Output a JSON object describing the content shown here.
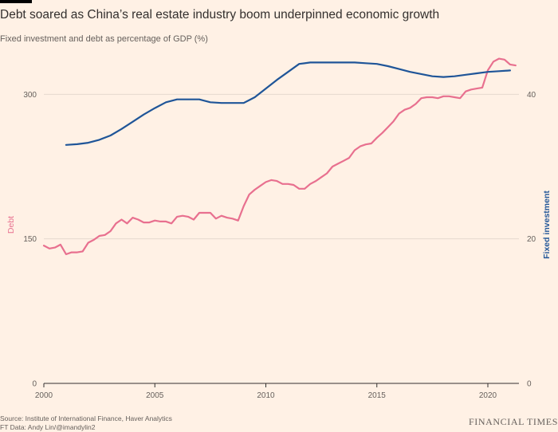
{
  "header": {
    "title": "Debt soared as China’s real estate industry boom underpinned economic growth",
    "subtitle": "Fixed investment and debt as percentage of GDP (%)"
  },
  "footer": {
    "source": "Source: Institute of International Finance, Haver Analytics",
    "credit": "FT Data: Andy Lin/@imandylin2",
    "brand": "FINANCIAL TIMES"
  },
  "colors": {
    "background": "#fff1e5",
    "debt": "#e8708f",
    "fixed_investment": "#1f5598",
    "axis": "#33302e",
    "grid": "#e6d9ce"
  },
  "chart_data": {
    "type": "line",
    "x_range": [
      2000,
      2021.4
    ],
    "x_ticks": [
      2000,
      2005,
      2010,
      2015,
      2020
    ],
    "grid": true,
    "y_left": {
      "label": "Debt",
      "range": [
        0,
        340
      ],
      "ticks": [
        0,
        150,
        300
      ],
      "color": "#e8708f"
    },
    "y_right": {
      "label": "Fixed investment",
      "range": [
        0,
        45.33
      ],
      "ticks": [
        0,
        20,
        40
      ],
      "color": "#1f5598"
    },
    "series": [
      {
        "name": "Debt",
        "axis": "left",
        "x": [
          2000.0,
          2000.25,
          2000.5,
          2000.75,
          2001.0,
          2001.25,
          2001.5,
          2001.75,
          2002.0,
          2002.25,
          2002.5,
          2002.75,
          2003.0,
          2003.25,
          2003.5,
          2003.75,
          2004.0,
          2004.25,
          2004.5,
          2004.75,
          2005.0,
          2005.25,
          2005.5,
          2005.75,
          2006.0,
          2006.25,
          2006.5,
          2006.75,
          2007.0,
          2007.25,
          2007.5,
          2007.75,
          2008.0,
          2008.25,
          2008.5,
          2008.75,
          2009.0,
          2009.25,
          2009.5,
          2009.75,
          2010.0,
          2010.25,
          2010.5,
          2010.75,
          2011.0,
          2011.25,
          2011.5,
          2011.75,
          2012.0,
          2012.25,
          2012.5,
          2012.75,
          2013.0,
          2013.25,
          2013.5,
          2013.75,
          2014.0,
          2014.25,
          2014.5,
          2014.75,
          2015.0,
          2015.25,
          2015.5,
          2015.75,
          2016.0,
          2016.25,
          2016.5,
          2016.75,
          2017.0,
          2017.25,
          2017.5,
          2017.75,
          2018.0,
          2018.25,
          2018.5,
          2018.75,
          2019.0,
          2019.25,
          2019.5,
          2019.75,
          2020.0,
          2020.25,
          2020.5,
          2020.75,
          2021.0,
          2021.25
        ],
        "values": [
          143,
          140,
          141,
          144,
          134,
          136,
          136,
          137,
          146,
          149,
          153,
          154,
          158,
          166,
          170,
          166,
          172,
          170,
          167,
          167,
          169,
          168,
          168,
          166,
          173,
          174,
          173,
          170,
          177,
          177,
          177,
          171,
          174,
          172,
          171,
          169,
          184,
          196,
          201,
          205,
          209,
          211,
          210,
          207,
          207,
          206,
          202,
          202,
          207,
          210,
          214,
          218,
          225,
          228,
          231,
          234,
          242,
          246,
          248,
          249,
          255,
          260,
          266,
          272,
          280,
          284,
          286,
          290,
          296,
          297,
          297,
          296,
          298,
          298,
          297,
          296,
          303,
          305,
          306,
          307,
          325,
          334,
          337,
          336,
          331,
          330
        ]
      },
      {
        "name": "Fixed investment",
        "axis": "right",
        "x": [
          2001.0,
          2001.5,
          2002.0,
          2002.5,
          2003.0,
          2003.5,
          2004.0,
          2004.5,
          2005.0,
          2005.5,
          2006.0,
          2006.5,
          2007.0,
          2007.5,
          2008.0,
          2008.5,
          2009.0,
          2009.5,
          2010.0,
          2010.5,
          2011.0,
          2011.5,
          2012.0,
          2012.5,
          2013.0,
          2013.5,
          2014.0,
          2014.5,
          2015.0,
          2015.5,
          2016.0,
          2016.5,
          2017.0,
          2017.5,
          2018.0,
          2018.5,
          2019.0,
          2019.5,
          2020.0,
          2020.5,
          2021.0
        ],
        "values": [
          33.0,
          33.1,
          33.3,
          33.7,
          34.3,
          35.2,
          36.2,
          37.2,
          38.1,
          38.9,
          39.3,
          39.3,
          39.3,
          38.9,
          38.8,
          38.8,
          38.8,
          39.6,
          40.8,
          42.0,
          43.1,
          44.2,
          44.4,
          44.4,
          44.4,
          44.4,
          44.4,
          44.3,
          44.2,
          43.9,
          43.5,
          43.1,
          42.8,
          42.5,
          42.4,
          42.5,
          42.7,
          42.9,
          43.1,
          43.2,
          43.3
        ]
      }
    ]
  }
}
